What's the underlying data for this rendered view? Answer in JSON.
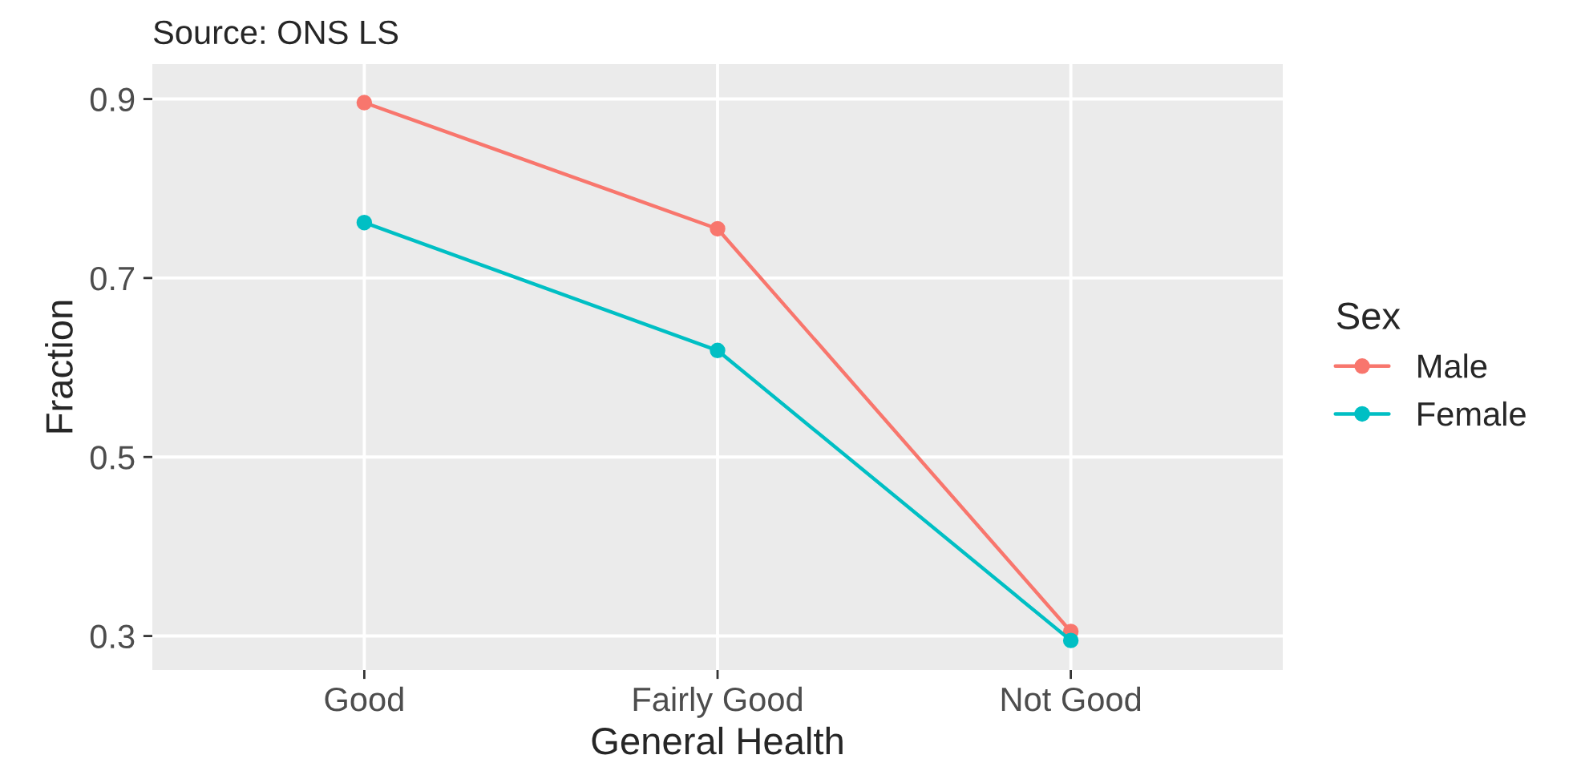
{
  "chart_data": {
    "type": "line",
    "annotations": [
      "Source: ONS LS"
    ],
    "xlabel": "General Health",
    "ylabel": "Fraction",
    "legend_title": "Sex",
    "categories": [
      "Good",
      "Fairly Good",
      "Not Good"
    ],
    "series": [
      {
        "name": "Male",
        "color": "#f8766d",
        "values": [
          0.896,
          0.755,
          0.305
        ]
      },
      {
        "name": "Female",
        "color": "#00bfc4",
        "values": [
          0.762,
          0.619,
          0.295
        ]
      }
    ],
    "ylim": [
      0.262,
      0.939
    ],
    "yticks": [
      0.3,
      0.5,
      0.7,
      0.9
    ],
    "grid": true,
    "legend": "right",
    "marker": "circle",
    "line_style": "solid"
  }
}
